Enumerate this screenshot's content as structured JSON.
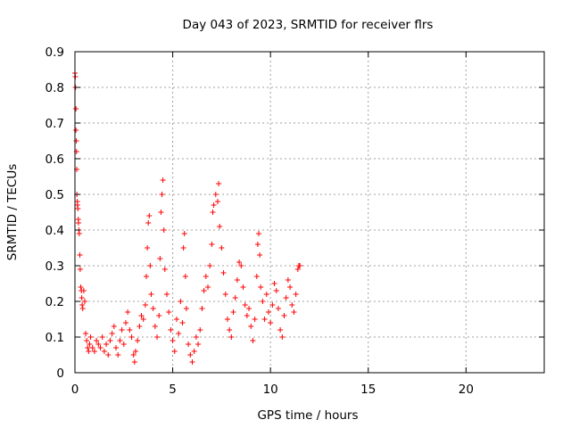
{
  "chart_data": {
    "type": "scatter",
    "title": "Day 043 of 2023, SRMTID for receiver flrs",
    "xlabel": "GPS time / hours",
    "ylabel": "SRMTID / TECUs",
    "xlim": [
      0,
      24
    ],
    "ylim": [
      0,
      0.9
    ],
    "xticks": [
      0,
      5,
      10,
      15,
      20
    ],
    "yticks": [
      0,
      0.1,
      0.2,
      0.3,
      0.4,
      0.5,
      0.6,
      0.7,
      0.8,
      0.9
    ],
    "xtick_labels": [
      "0",
      "5",
      "10",
      "15",
      "20"
    ],
    "ytick_labels": [
      "0",
      "0.1",
      "0.2",
      "0.3",
      "0.4",
      "0.5",
      "0.6",
      "0.7",
      "0.8",
      "0.9"
    ],
    "grid": true,
    "marker": "+",
    "color": "#ff0000",
    "series": [
      {
        "name": "SRMTID",
        "points": [
          [
            0.0,
            0.84
          ],
          [
            0.02,
            0.83
          ],
          [
            0.03,
            0.8
          ],
          [
            0.05,
            0.74
          ],
          [
            0.05,
            0.68
          ],
          [
            0.07,
            0.65
          ],
          [
            0.08,
            0.62
          ],
          [
            0.09,
            0.57
          ],
          [
            0.1,
            0.5
          ],
          [
            0.12,
            0.48
          ],
          [
            0.13,
            0.47
          ],
          [
            0.15,
            0.46
          ],
          [
            0.17,
            0.43
          ],
          [
            0.18,
            0.42
          ],
          [
            0.2,
            0.4
          ],
          [
            0.22,
            0.39
          ],
          [
            0.25,
            0.33
          ],
          [
            0.27,
            0.29
          ],
          [
            0.3,
            0.24
          ],
          [
            0.33,
            0.23
          ],
          [
            0.35,
            0.21
          ],
          [
            0.37,
            0.19
          ],
          [
            0.4,
            0.18
          ],
          [
            0.45,
            0.23
          ],
          [
            0.5,
            0.2
          ],
          [
            0.55,
            0.11
          ],
          [
            0.6,
            0.09
          ],
          [
            0.65,
            0.07
          ],
          [
            0.7,
            0.06
          ],
          [
            0.75,
            0.08
          ],
          [
            0.8,
            0.1
          ],
          [
            0.9,
            0.07
          ],
          [
            1.0,
            0.06
          ],
          [
            1.1,
            0.09
          ],
          [
            1.2,
            0.08
          ],
          [
            1.3,
            0.07
          ],
          [
            1.4,
            0.1
          ],
          [
            1.5,
            0.06
          ],
          [
            1.6,
            0.08
          ],
          [
            1.7,
            0.05
          ],
          [
            1.8,
            0.09
          ],
          [
            1.9,
            0.11
          ],
          [
            2.0,
            0.13
          ],
          [
            2.1,
            0.07
          ],
          [
            2.2,
            0.05
          ],
          [
            2.3,
            0.09
          ],
          [
            2.4,
            0.12
          ],
          [
            2.5,
            0.08
          ],
          [
            2.6,
            0.14
          ],
          [
            2.7,
            0.17
          ],
          [
            2.8,
            0.12
          ],
          [
            2.9,
            0.1
          ],
          [
            3.0,
            0.05
          ],
          [
            3.05,
            0.03
          ],
          [
            3.1,
            0.06
          ],
          [
            3.2,
            0.09
          ],
          [
            3.3,
            0.13
          ],
          [
            3.4,
            0.16
          ],
          [
            3.5,
            0.15
          ],
          [
            3.6,
            0.19
          ],
          [
            3.65,
            0.27
          ],
          [
            3.7,
            0.35
          ],
          [
            3.75,
            0.42
          ],
          [
            3.8,
            0.44
          ],
          [
            3.85,
            0.3
          ],
          [
            3.9,
            0.22
          ],
          [
            4.0,
            0.18
          ],
          [
            4.1,
            0.13
          ],
          [
            4.2,
            0.1
          ],
          [
            4.3,
            0.16
          ],
          [
            4.35,
            0.32
          ],
          [
            4.4,
            0.45
          ],
          [
            4.45,
            0.5
          ],
          [
            4.5,
            0.54
          ],
          [
            4.55,
            0.4
          ],
          [
            4.6,
            0.29
          ],
          [
            4.7,
            0.22
          ],
          [
            4.8,
            0.17
          ],
          [
            4.9,
            0.12
          ],
          [
            5.0,
            0.09
          ],
          [
            5.1,
            0.06
          ],
          [
            5.2,
            0.15
          ],
          [
            5.3,
            0.11
          ],
          [
            5.4,
            0.2
          ],
          [
            5.5,
            0.14
          ],
          [
            5.55,
            0.35
          ],
          [
            5.6,
            0.39
          ],
          [
            5.65,
            0.27
          ],
          [
            5.7,
            0.18
          ],
          [
            5.8,
            0.08
          ],
          [
            5.9,
            0.05
          ],
          [
            6.0,
            0.03
          ],
          [
            6.1,
            0.06
          ],
          [
            6.2,
            0.1
          ],
          [
            6.3,
            0.08
          ],
          [
            6.4,
            0.12
          ],
          [
            6.5,
            0.18
          ],
          [
            6.6,
            0.23
          ],
          [
            6.7,
            0.27
          ],
          [
            6.8,
            0.24
          ],
          [
            6.9,
            0.3
          ],
          [
            7.0,
            0.36
          ],
          [
            7.05,
            0.45
          ],
          [
            7.1,
            0.47
          ],
          [
            7.2,
            0.5
          ],
          [
            7.3,
            0.48
          ],
          [
            7.35,
            0.53
          ],
          [
            7.4,
            0.41
          ],
          [
            7.5,
            0.35
          ],
          [
            7.6,
            0.28
          ],
          [
            7.7,
            0.22
          ],
          [
            7.8,
            0.15
          ],
          [
            7.9,
            0.12
          ],
          [
            8.0,
            0.1
          ],
          [
            8.1,
            0.17
          ],
          [
            8.2,
            0.21
          ],
          [
            8.3,
            0.26
          ],
          [
            8.4,
            0.31
          ],
          [
            8.5,
            0.3
          ],
          [
            8.6,
            0.24
          ],
          [
            8.7,
            0.19
          ],
          [
            8.8,
            0.16
          ],
          [
            8.9,
            0.18
          ],
          [
            9.0,
            0.13
          ],
          [
            9.1,
            0.09
          ],
          [
            9.2,
            0.15
          ],
          [
            9.3,
            0.27
          ],
          [
            9.35,
            0.36
          ],
          [
            9.4,
            0.39
          ],
          [
            9.45,
            0.33
          ],
          [
            9.5,
            0.24
          ],
          [
            9.6,
            0.2
          ],
          [
            9.7,
            0.15
          ],
          [
            9.8,
            0.22
          ],
          [
            9.9,
            0.17
          ],
          [
            10.0,
            0.14
          ],
          [
            10.1,
            0.19
          ],
          [
            10.2,
            0.25
          ],
          [
            10.3,
            0.23
          ],
          [
            10.4,
            0.18
          ],
          [
            10.5,
            0.12
          ],
          [
            10.6,
            0.1
          ],
          [
            10.7,
            0.16
          ],
          [
            10.8,
            0.21
          ],
          [
            10.9,
            0.26
          ],
          [
            11.0,
            0.24
          ],
          [
            11.1,
            0.19
          ],
          [
            11.2,
            0.17
          ],
          [
            11.3,
            0.22
          ],
          [
            11.4,
            0.29
          ],
          [
            11.45,
            0.3
          ],
          [
            11.5,
            0.3
          ]
        ]
      }
    ]
  }
}
